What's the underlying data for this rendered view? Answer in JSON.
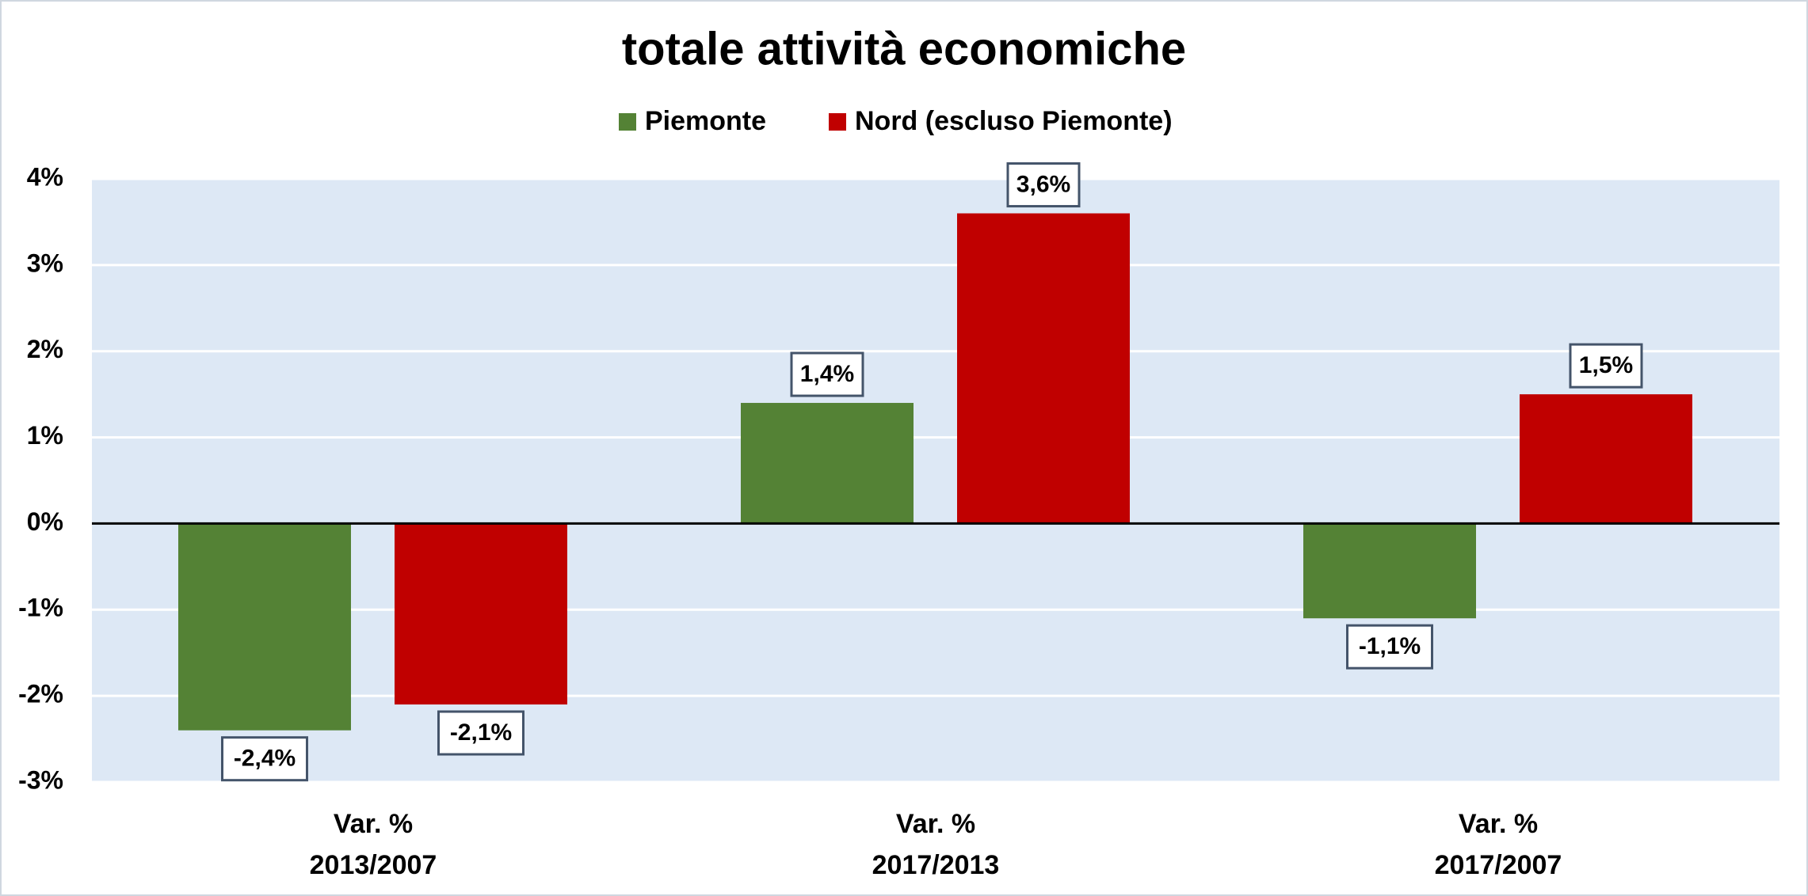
{
  "chart_data": {
    "type": "bar",
    "title": "totale attività economiche",
    "categories": [
      "Var. %\n2013/2007",
      "Var. %\n2017/2013",
      "Var. %\n2017/2007"
    ],
    "series": [
      {
        "name": "Piemonte",
        "color": "#548235",
        "values": [
          -2.4,
          1.4,
          -1.1
        ],
        "value_labels": [
          "-2,4%",
          "1,4%",
          "-1,1%"
        ]
      },
      {
        "name": "Nord (escluso Piemonte)",
        "color": "#c00000",
        "values": [
          -2.1,
          3.6,
          1.5
        ],
        "value_labels": [
          "-2,1%",
          "3,6%",
          "1,5%"
        ]
      }
    ],
    "ylim": [
      -3,
      4
    ],
    "yticks": [
      {
        "value": -3,
        "label": "-3%"
      },
      {
        "value": -2,
        "label": "-2%"
      },
      {
        "value": -1,
        "label": "-1%"
      },
      {
        "value": 0,
        "label": "0%"
      },
      {
        "value": 1,
        "label": "1%"
      },
      {
        "value": 2,
        "label": "2%"
      },
      {
        "value": 3,
        "label": "3%"
      },
      {
        "value": 4,
        "label": "4%"
      }
    ],
    "grid": true,
    "legend": "top"
  }
}
